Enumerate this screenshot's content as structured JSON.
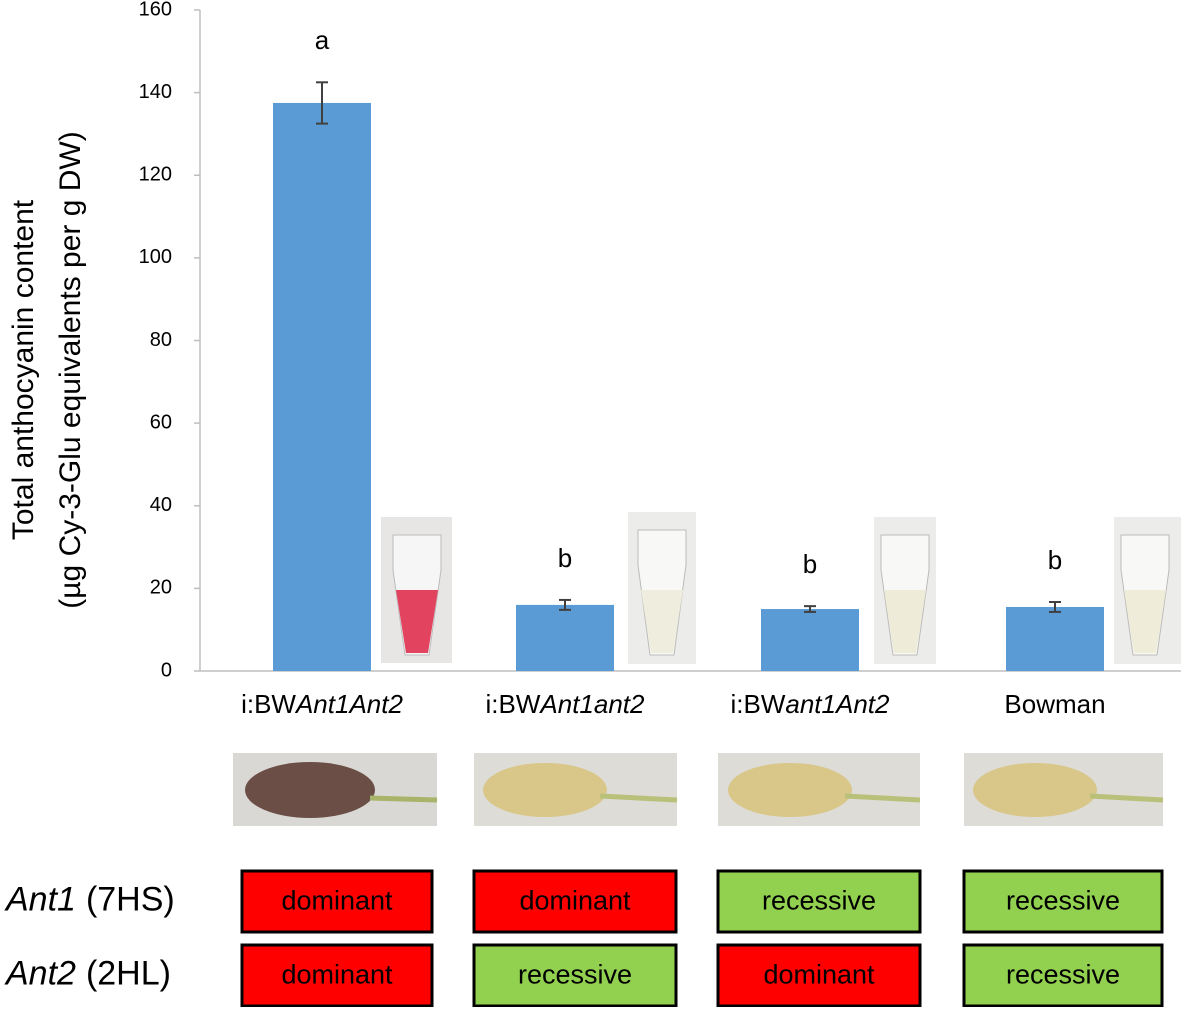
{
  "chart_data": {
    "type": "bar",
    "y_label": [
      "Total anthocyanin content",
      "(µg Cy-3-Glu equivalents per g DW)"
    ],
    "categories": [
      [
        "i:BW",
        "Ant1Ant2"
      ],
      [
        "i:BW",
        "Ant1ant2"
      ],
      [
        "i:BW",
        "ant1Ant2"
      ],
      [
        "Bowman"
      ]
    ],
    "values": [
      137.5,
      16,
      15,
      15.5
    ],
    "errors": [
      5,
      1.2,
      0.7,
      1.2
    ],
    "letters": [
      "a",
      "b",
      "b",
      "b"
    ],
    "color": "#5b9bd5",
    "ylim": [
      0,
      160
    ],
    "yticks": [
      0,
      20,
      40,
      60,
      80,
      100,
      120,
      140,
      160
    ],
    "grid": false
  },
  "genotype_table": {
    "rows": [
      {
        "gene": "Ant1",
        "locus": "(7HS)",
        "cells": [
          "dominant",
          "dominant",
          "recessive",
          "recessive"
        ]
      },
      {
        "gene": "Ant2",
        "locus": "(2HL)",
        "cells": [
          "dominant",
          "recessive",
          "dominant",
          "recessive"
        ]
      }
    ],
    "colors": {
      "dominant": "#ff0000",
      "recessive": "#92d050"
    }
  }
}
